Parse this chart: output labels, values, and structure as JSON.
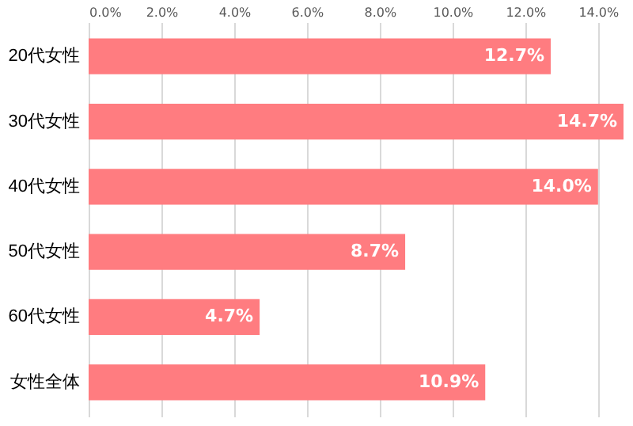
{
  "chart_data": {
    "type": "bar",
    "orientation": "horizontal",
    "categories": [
      "20代女性",
      "30代女性",
      "40代女性",
      "50代女性",
      "60代女性",
      "女性全体"
    ],
    "values": [
      12.7,
      14.7,
      14.0,
      8.7,
      4.7,
      10.9
    ],
    "value_labels": [
      "12.7%",
      "14.7%",
      "14.0%",
      "8.7%",
      "4.7%",
      "10.9%"
    ],
    "color": "#ff7c80",
    "xlim": [
      0,
      14.7
    ],
    "xticks": [
      {
        "value": 0,
        "label": "0.0%"
      },
      {
        "value": 2,
        "label": "2.0%"
      },
      {
        "value": 4,
        "label": "4.0%"
      },
      {
        "value": 6,
        "label": "6.0%"
      },
      {
        "value": 8,
        "label": "8.0%"
      },
      {
        "value": 10,
        "label": "10.0%"
      },
      {
        "value": 12,
        "label": "12.0%"
      },
      {
        "value": 14,
        "label": "14.0%"
      }
    ],
    "grid": "x"
  }
}
